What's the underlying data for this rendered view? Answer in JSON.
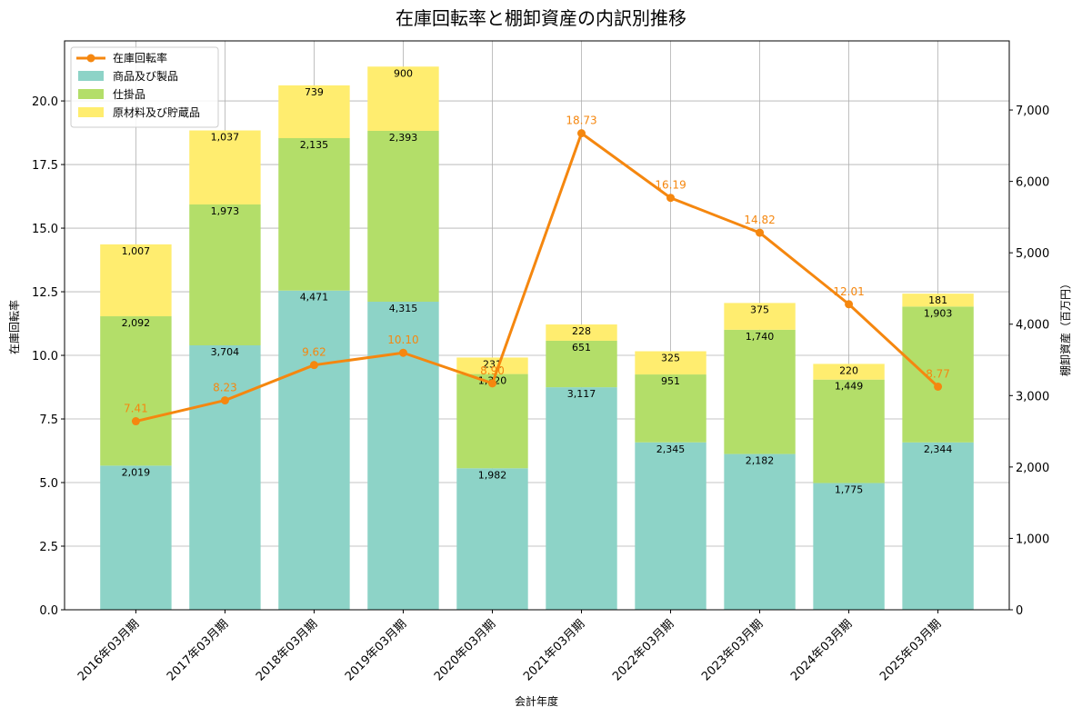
{
  "chart_data": {
    "type": "bar",
    "title": "在庫回転率と棚卸資産の内訳別推移",
    "xlabel": "会計年度",
    "ylabel_left": "在庫回転率",
    "ylabel_right": "棚卸資産（百万円）",
    "ylim_left": [
      0,
      22.36
    ],
    "ylim_right": [
      0,
      7968
    ],
    "yticks_left": [
      "0.0",
      "2.5",
      "5.0",
      "7.5",
      "10.0",
      "12.5",
      "15.0",
      "17.5",
      "20.0"
    ],
    "yticks_right": [
      "0",
      "1,000",
      "2,000",
      "3,000",
      "4,000",
      "5,000",
      "6,000",
      "7,000"
    ],
    "grid": true,
    "legend_position": "top-left",
    "categories": [
      "2016年03月期",
      "2017年03月期",
      "2018年03月期",
      "2019年03月期",
      "2020年03月期",
      "2021年03月期",
      "2022年03月期",
      "2023年03月期",
      "2024年03月期",
      "2025年03月期"
    ],
    "series": [
      {
        "name": "商品及び製品",
        "kind": "bar",
        "axis": "right",
        "color": "#8dd3c7",
        "values": [
          2019,
          3704,
          4471,
          4315,
          1982,
          3117,
          2345,
          2182,
          1775,
          2344
        ],
        "labels": [
          "2,019",
          "3,704",
          "4,471",
          "4,315",
          "1,982",
          "3,117",
          "2,345",
          "2,182",
          "1,775",
          "2,344"
        ]
      },
      {
        "name": "仕掛品",
        "kind": "bar",
        "axis": "right",
        "color": "#b3de69",
        "values": [
          2092,
          1973,
          2135,
          2393,
          1320,
          651,
          951,
          1740,
          1449,
          1903
        ],
        "labels": [
          "2,092",
          "1,973",
          "2,135",
          "2,393",
          "1,320",
          "651",
          "951",
          "1,740",
          "1,449",
          "1,903"
        ]
      },
      {
        "name": "原材料及び貯蔵品",
        "kind": "bar",
        "axis": "right",
        "color": "#ffed6f",
        "values": [
          1007,
          1037,
          739,
          900,
          231,
          228,
          325,
          375,
          220,
          181
        ],
        "labels": [
          "1,007",
          "1,037",
          "739",
          "900",
          "231",
          "228",
          "325",
          "375",
          "220",
          "181"
        ]
      },
      {
        "name": "在庫回転率",
        "kind": "line",
        "axis": "left",
        "color": "#f5870f",
        "values": [
          7.41,
          8.23,
          9.62,
          10.1,
          8.9,
          18.73,
          16.19,
          14.82,
          12.01,
          8.77
        ],
        "labels": [
          "7.41",
          "8.23",
          "9.62",
          "10.10",
          "8.90",
          "18.73",
          "16.19",
          "14.82",
          "12.01",
          "8.77"
        ]
      }
    ]
  }
}
